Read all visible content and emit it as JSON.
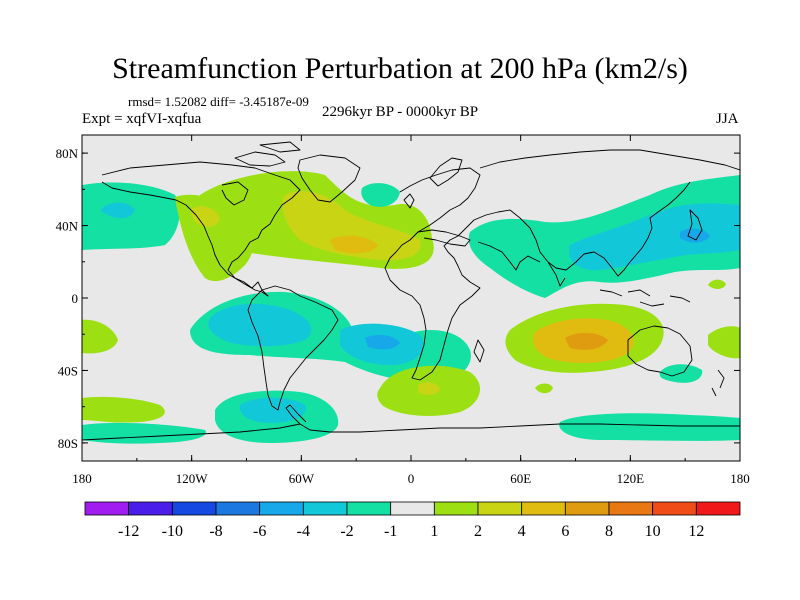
{
  "title": "Streamfunction Perturbation at 200 hPa (km2/s)",
  "stats": "rmsd= 1.52082 diff= -3.45187e-09",
  "experiment": "Expt = xqfVI-xqfua",
  "period": "2296kyr BP - 0000kyr BP",
  "season": "JJA",
  "chart_data": {
    "type": "heatmap",
    "title": "Streamfunction Perturbation at 200 hPa (km2/s)",
    "xlabel": "",
    "ylabel": "",
    "x_ticks": [
      "180",
      "120W",
      "60W",
      "0",
      "60E",
      "120E",
      "180"
    ],
    "y_ticks": [
      "80N",
      "40N",
      "0",
      "40S",
      "80S"
    ],
    "xlim": [
      -180,
      180
    ],
    "ylim": [
      -90,
      90
    ],
    "colorbar": {
      "levels": [
        "-12",
        "-10",
        "-8",
        "-6",
        "-4",
        "-2",
        "-1",
        "1",
        "2",
        "4",
        "6",
        "8",
        "10",
        "12"
      ],
      "colors": [
        "#a01cf0",
        "#4a1ee8",
        "#1448e0",
        "#1a78e0",
        "#16a8e8",
        "#12c8d8",
        "#14e0a4",
        "#e8e8e8",
        "#9ce014",
        "#c8d414",
        "#e0bc10",
        "#e09c10",
        "#e87814",
        "#f04c18",
        "#f01818"
      ]
    },
    "anomalies": [
      {
        "name": "n-atlantic-positive",
        "lon": -40,
        "lat": 28,
        "level": 2
      },
      {
        "name": "n-atlantic-core",
        "lon": -25,
        "lat": 28,
        "level": 4
      },
      {
        "name": "e-pacific-positive",
        "lon": -105,
        "lat": 33,
        "level": 2
      },
      {
        "name": "e-pacific-core",
        "lon": -105,
        "lat": 40,
        "level": 4
      },
      {
        "name": "n-pacific-negative",
        "lon": -165,
        "lat": 42,
        "level": -1
      },
      {
        "name": "n-pacific-core",
        "lon": -160,
        "lat": 44,
        "level": -2
      },
      {
        "name": "arctic-atlantic-negative",
        "lon": -15,
        "lat": 50,
        "level": -1
      },
      {
        "name": "asia-negative",
        "lon": 110,
        "lat": 33,
        "level": -1
      },
      {
        "name": "asia-core",
        "lon": 130,
        "lat": 30,
        "level": -2
      },
      {
        "name": "s-atlantic-negative",
        "lon": -40,
        "lat": -23,
        "level": -1
      },
      {
        "name": "s-atlantic-core",
        "lon": -10,
        "lat": -28,
        "level": -4
      },
      {
        "name": "s-pacific-negative",
        "lon": -90,
        "lat": -17,
        "level": -2
      },
      {
        "name": "s-indian-positive",
        "lon": 85,
        "lat": -25,
        "level": 2
      },
      {
        "name": "s-indian-core",
        "lon": 95,
        "lat": -28,
        "level": 6
      },
      {
        "name": "southern-ocean-negative",
        "lon": -70,
        "lat": -65,
        "level": -2
      },
      {
        "name": "southern-ocean-core",
        "lon": -70,
        "lat": -68,
        "level": -4
      },
      {
        "name": "s-atlantic-high",
        "lon": 10,
        "lat": -55,
        "level": 4
      },
      {
        "name": "s-pacific-high",
        "lon": -165,
        "lat": -65,
        "level": 2
      },
      {
        "name": "australia-east-negative",
        "lon": 150,
        "lat": -45,
        "level": -1
      }
    ]
  }
}
